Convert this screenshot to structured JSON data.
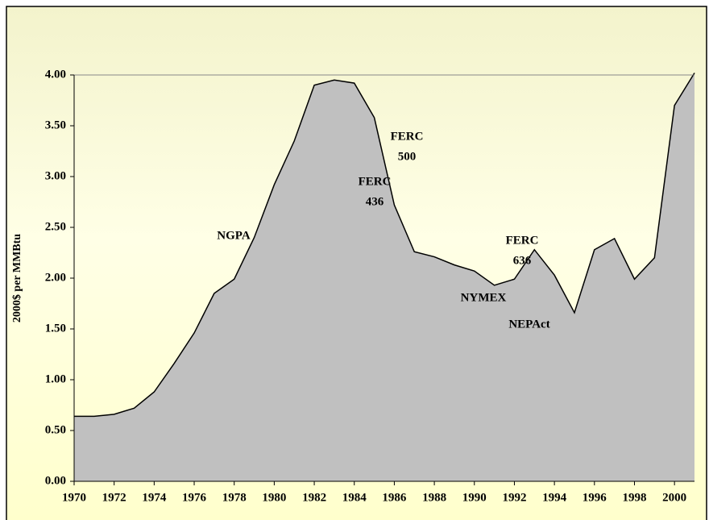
{
  "chart_data": {
    "type": "area",
    "y_label": "2000$ per MMBtu",
    "x": [
      1970,
      1971,
      1972,
      1973,
      1974,
      1975,
      1976,
      1977,
      1978,
      1979,
      1980,
      1981,
      1982,
      1983,
      1984,
      1985,
      1986,
      1987,
      1988,
      1989,
      1990,
      1991,
      1992,
      1993,
      1994,
      1995,
      1996,
      1997,
      1998,
      1999,
      2000,
      2001
    ],
    "values": [
      0.64,
      0.64,
      0.66,
      0.72,
      0.88,
      1.16,
      1.46,
      1.85,
      1.99,
      2.4,
      2.92,
      3.35,
      3.9,
      3.95,
      3.92,
      3.58,
      2.72,
      2.26,
      2.21,
      2.13,
      2.07,
      1.93,
      1.99,
      2.28,
      2.03,
      1.66,
      2.28,
      2.39,
      1.99,
      2.2,
      3.7,
      4.02
    ],
    "color": "#c0c0c0",
    "xlim": [
      1970,
      2001
    ],
    "xticks": [
      1970,
      1972,
      1974,
      1976,
      1978,
      1980,
      1982,
      1984,
      1986,
      1988,
      1990,
      1992,
      1994,
      1996,
      1998,
      2000
    ],
    "ylim": [
      0,
      4
    ],
    "yticks": [
      {
        "value": 0,
        "label": "0.00"
      },
      {
        "value": 0.5,
        "label": "0.50"
      },
      {
        "value": 1,
        "label": "1.00"
      },
      {
        "value": 1.5,
        "label": "1.50"
      },
      {
        "value": 2,
        "label": "2.00"
      },
      {
        "value": 2.5,
        "label": "2.50"
      },
      {
        "value": 3,
        "label": "3.00"
      },
      {
        "value": 3.5,
        "label": "3.50"
      },
      {
        "value": 4,
        "label": "4.00"
      }
    ],
    "annotations": [
      [
        "NGPA"
      ],
      [
        "FERC",
        "500"
      ],
      [
        "FERC",
        "436"
      ],
      [
        "FERC",
        "636"
      ],
      [
        "NYMEX"
      ],
      [
        "NEPAct"
      ]
    ]
  }
}
